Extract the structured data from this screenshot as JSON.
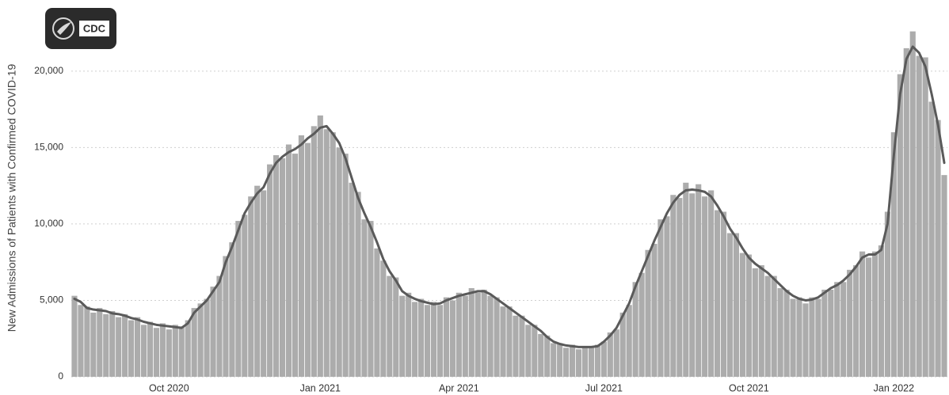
{
  "chart_data": {
    "type": "bar",
    "logo_text": "CDC",
    "y_label": "New Admissions of Patients with Confirmed COVID-19",
    "ylim": [
      0,
      23100
    ],
    "yticks": [
      0,
      {
        "value": 5000,
        "label": "5,000"
      },
      {
        "value": 10000,
        "label": "10,000"
      },
      {
        "value": 15000,
        "label": "15,000"
      },
      {
        "value": 20000,
        "label": "20,000"
      }
    ],
    "grid": true,
    "categories": [
      null,
      null,
      null,
      null,
      null,
      null,
      null,
      null,
      null,
      null,
      null,
      null,
      null,
      null,
      null,
      "Oct 2020",
      null,
      null,
      null,
      null,
      null,
      null,
      null,
      null,
      null,
      null,
      null,
      null,
      null,
      null,
      null,
      null,
      null,
      null,
      null,
      null,
      null,
      null,
      null,
      "Jan 2021",
      null,
      null,
      null,
      null,
      null,
      null,
      null,
      null,
      null,
      null,
      null,
      null,
      null,
      null,
      null,
      null,
      null,
      null,
      null,
      null,
      null,
      "Apr 2021",
      null,
      null,
      null,
      null,
      null,
      null,
      null,
      null,
      null,
      null,
      null,
      null,
      null,
      null,
      null,
      null,
      null,
      null,
      null,
      null,
      null,
      null,
      "Jul 2021",
      null,
      null,
      null,
      null,
      null,
      null,
      null,
      null,
      null,
      null,
      null,
      null,
      null,
      null,
      null,
      null,
      null,
      null,
      null,
      null,
      null,
      null,
      "Oct 2021",
      null,
      null,
      null,
      null,
      null,
      null,
      null,
      null,
      null,
      null,
      null,
      null,
      null,
      null,
      null,
      null,
      null,
      null,
      null,
      null,
      null,
      null,
      "Jan 2022",
      null,
      null,
      null,
      null,
      null,
      null,
      null,
      null
    ],
    "series": [
      {
        "type": "bar",
        "color": "#acacac",
        "values": [
          5300,
          4700,
          4600,
          4200,
          4500,
          4100,
          4300,
          3900,
          4100,
          3700,
          3900,
          3400,
          3600,
          3200,
          3500,
          3100,
          3400,
          3300,
          3700,
          4500,
          4800,
          5100,
          5900,
          6600,
          7900,
          8800,
          10200,
          10600,
          11800,
          12500,
          12200,
          13900,
          14500,
          14300,
          15200,
          14600,
          15800,
          15300,
          16400,
          17100,
          16200,
          16000,
          15000,
          14600,
          12700,
          12100,
          10300,
          10200,
          8400,
          7600,
          6600,
          6500,
          5300,
          5500,
          4900,
          5100,
          4700,
          4900,
          4700,
          5200,
          5000,
          5500,
          5300,
          5800,
          5500,
          5700,
          5300,
          5200,
          4600,
          4600,
          4000,
          4000,
          3400,
          3400,
          2800,
          2700,
          2200,
          2200,
          1900,
          2100,
          1800,
          2000,
          1900,
          2100,
          2300,
          2900,
          3100,
          4200,
          4700,
          6200,
          6800,
          8300,
          8700,
          10300,
          10500,
          11900,
          11700,
          12700,
          12000,
          12600,
          11800,
          12200,
          10900,
          10800,
          9400,
          9400,
          8100,
          8000,
          7100,
          7300,
          6600,
          6600,
          5800,
          5700,
          5100,
          5200,
          4800,
          5200,
          5100,
          5700,
          5700,
          6200,
          6200,
          7000,
          7300,
          8200,
          7800,
          8200,
          8600,
          10800,
          16000,
          19800,
          21500,
          22600,
          21000,
          20900,
          18000,
          16800,
          13200
        ]
      },
      {
        "type": "line",
        "color": "#5a5a5a",
        "values": [
          5100,
          4900,
          4500,
          4400,
          4350,
          4300,
          4150,
          4100,
          4000,
          3850,
          3750,
          3600,
          3500,
          3400,
          3350,
          3300,
          3250,
          3200,
          3500,
          4200,
          4600,
          5000,
          5600,
          6200,
          7500,
          8500,
          9600,
          10700,
          11400,
          12000,
          12400,
          13300,
          14000,
          14400,
          14700,
          14900,
          15200,
          15600,
          15900,
          16300,
          16400,
          15900,
          15300,
          14300,
          13000,
          11700,
          10700,
          9800,
          8800,
          7700,
          6900,
          6300,
          5600,
          5300,
          5100,
          4950,
          4850,
          4750,
          4800,
          5000,
          5150,
          5300,
          5400,
          5500,
          5600,
          5600,
          5400,
          5100,
          4800,
          4500,
          4200,
          3900,
          3600,
          3300,
          3000,
          2600,
          2300,
          2150,
          2050,
          2000,
          1950,
          1950,
          1950,
          2000,
          2300,
          2700,
          3200,
          4000,
          4800,
          5900,
          6900,
          7900,
          8900,
          9800,
          10700,
          11400,
          11900,
          12200,
          12250,
          12200,
          12100,
          11800,
          11200,
          10500,
          9700,
          9100,
          8400,
          7800,
          7400,
          7100,
          6800,
          6400,
          6000,
          5600,
          5300,
          5100,
          5000,
          5050,
          5200,
          5500,
          5800,
          6000,
          6300,
          6700,
          7200,
          7800,
          8000,
          8000,
          8300,
          10000,
          14500,
          18500,
          20800,
          21600,
          21200,
          20300,
          18500,
          16500,
          14000
        ]
      }
    ]
  }
}
